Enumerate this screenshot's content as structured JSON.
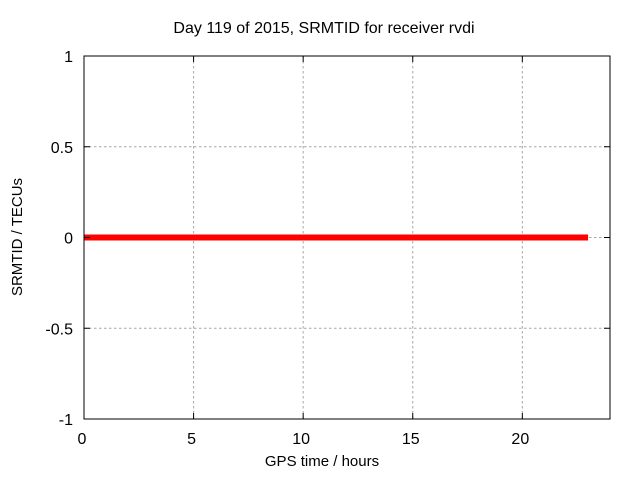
{
  "window": {
    "background_color": "#ffffff"
  },
  "chart_data": {
    "type": "line",
    "title": "Day 119 of 2015, SRMTID for receiver rvdi",
    "xlabel": "GPS time / hours",
    "ylabel": "SRMTID / TECUs",
    "xlim": [
      0,
      24
    ],
    "ylim": [
      -1,
      1
    ],
    "xticks": [
      0,
      5,
      10,
      15,
      20
    ],
    "yticks": [
      -1,
      -0.5,
      0,
      0.5,
      1
    ],
    "grid": true,
    "legend": "none",
    "grid_color": "#a6a6a6",
    "axis_color": "#000000",
    "series": [
      {
        "name": "SRMTID",
        "color": "#ff0000",
        "line_width": 6,
        "x": [
          0,
          23
        ],
        "y": [
          0,
          0
        ]
      }
    ]
  }
}
